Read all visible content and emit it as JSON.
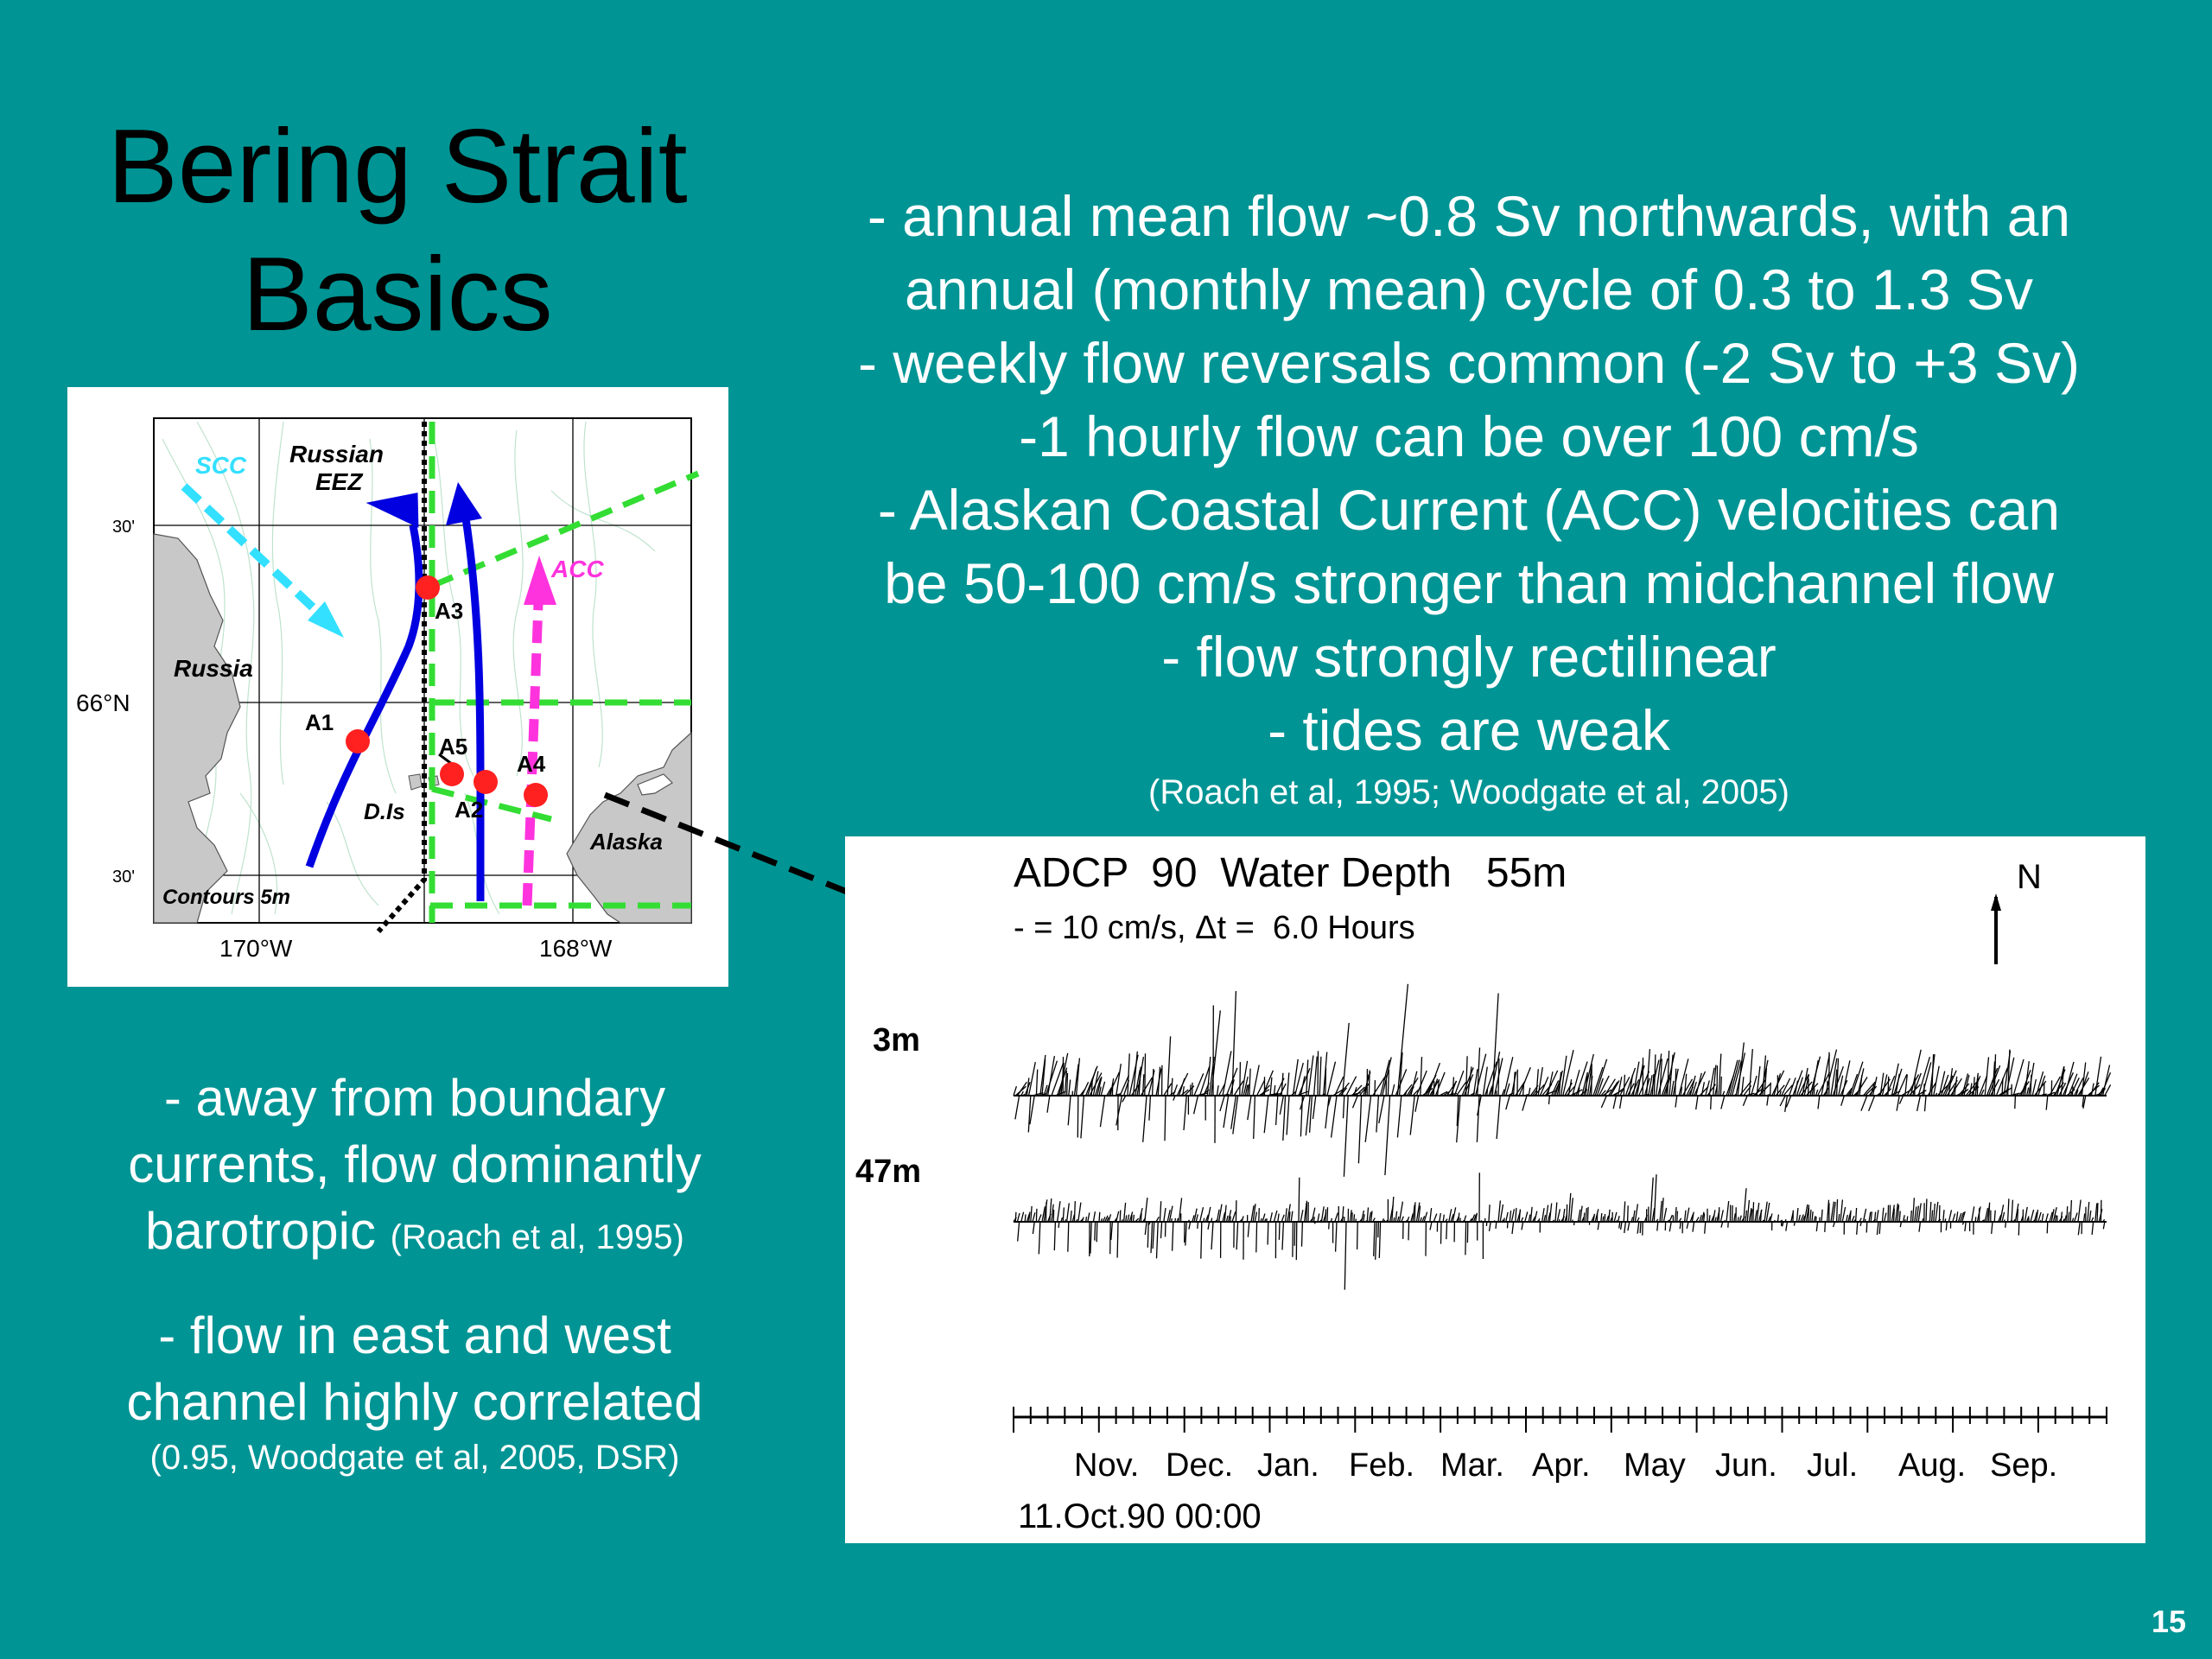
{
  "slide": {
    "title_line1": "Bering Strait",
    "title_line2": "Basics",
    "number": "15"
  },
  "right_bullets": {
    "lines": [
      "- annual mean flow ~0.8 Sv northwards, with an",
      "annual (monthly mean) cycle of 0.3 to 1.3 Sv",
      "- weekly flow reversals common (-2 Sv to +3 Sv)",
      "-1 hourly flow can be over 100 cm/s",
      "- Alaskan Coastal Current (ACC) velocities can",
      "be 50-100 cm/s stronger than midchannel flow",
      "- flow strongly rectilinear",
      "- tides are weak"
    ],
    "reference": "(Roach et al, 1995; Woodgate et al, 2005)"
  },
  "left_bullets": {
    "b1_line1": "- away from boundary",
    "b1_line2": "currents, flow dominantly",
    "b1_line3": "barotropic",
    "b1_ref": "(Roach et al, 1995)",
    "b2_line1": "- flow in east and west",
    "b2_line2": "channel highly correlated",
    "b2_ref": "(0.95, Woodgate et al, 2005, DSR)"
  },
  "map": {
    "labels": {
      "scc": "SCC",
      "russian_eez_1": "Russian",
      "russian_eez_2": "EEZ",
      "acc": "ACC",
      "russia": "Russia",
      "alaska": "Alaska",
      "dis": "D.Is",
      "contours": "Contours 5m",
      "lat_30_top": "30'",
      "lat_66n": "66°N",
      "lat_30_bottom": "30'",
      "lon_170w": "170°W",
      "lon_168w": "168°W"
    },
    "moorings": [
      "A1",
      "A2",
      "A3",
      "A4",
      "A5"
    ],
    "colors": {
      "scc": "#33e0ff",
      "acc": "#ff33dd",
      "current": "#0000e0",
      "mooring": "#ff2020",
      "eez_line": "#000000",
      "section_line": "#33dd33",
      "land": "#c8c8c8"
    }
  },
  "adcp": {
    "title": "ADCP  90  Water Depth   55m",
    "scale": "- = 10 cm/s, Δt =  6.0 Hours",
    "north": "N",
    "depth_top": "3m",
    "depth_bottom": "47m",
    "months": [
      "Nov.",
      "Dec.",
      "Jan.",
      "Feb.",
      "Mar.",
      "Apr.",
      "May",
      "Jun.",
      "Jul.",
      "Aug.",
      "Sep."
    ],
    "start_label": "11.Oct.90 00:00"
  }
}
